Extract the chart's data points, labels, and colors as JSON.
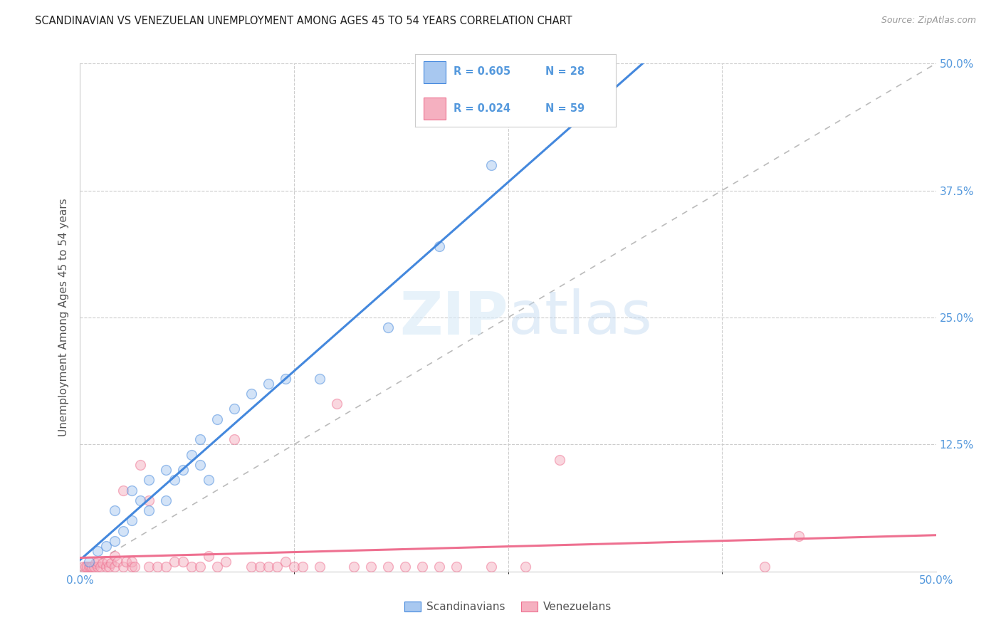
{
  "title": "SCANDINAVIAN VS VENEZUELAN UNEMPLOYMENT AMONG AGES 45 TO 54 YEARS CORRELATION CHART",
  "source": "Source: ZipAtlas.com",
  "ylabel": "Unemployment Among Ages 45 to 54 years",
  "xlim": [
    0,
    0.5
  ],
  "ylim": [
    0,
    0.5
  ],
  "right_yticks": [
    0.0,
    0.125,
    0.25,
    0.375,
    0.5
  ],
  "right_yticklabels": [
    "",
    "12.5%",
    "25.0%",
    "37.5%",
    "50.0%"
  ],
  "scandinavian_color": "#A8C8F0",
  "venezuelan_color": "#F5B0C0",
  "scand_line_color": "#4488DD",
  "venez_line_color": "#EE7090",
  "diagonal_color": "#BBBBBB",
  "legend_label_scand": "Scandinavians",
  "legend_label_venez": "Venezuelans",
  "title_color": "#222222",
  "source_color": "#999999",
  "axis_label_color": "#555555",
  "tick_color": "#5599DD",
  "grid_color": "#CCCCCC",
  "scand_x": [
    0.005,
    0.01,
    0.015,
    0.02,
    0.02,
    0.025,
    0.03,
    0.03,
    0.035,
    0.04,
    0.04,
    0.05,
    0.05,
    0.055,
    0.06,
    0.065,
    0.07,
    0.07,
    0.075,
    0.08,
    0.09,
    0.1,
    0.11,
    0.12,
    0.14,
    0.18,
    0.21,
    0.24
  ],
  "scand_y": [
    0.01,
    0.02,
    0.025,
    0.03,
    0.06,
    0.04,
    0.05,
    0.08,
    0.07,
    0.06,
    0.09,
    0.07,
    0.1,
    0.09,
    0.1,
    0.115,
    0.105,
    0.13,
    0.09,
    0.15,
    0.16,
    0.175,
    0.185,
    0.19,
    0.19,
    0.24,
    0.32,
    0.4
  ],
  "venez_x": [
    0.002,
    0.003,
    0.004,
    0.005,
    0.006,
    0.007,
    0.008,
    0.009,
    0.01,
    0.01,
    0.012,
    0.013,
    0.015,
    0.016,
    0.017,
    0.018,
    0.02,
    0.02,
    0.022,
    0.025,
    0.025,
    0.027,
    0.03,
    0.03,
    0.032,
    0.035,
    0.04,
    0.04,
    0.045,
    0.05,
    0.055,
    0.06,
    0.065,
    0.07,
    0.075,
    0.08,
    0.085,
    0.09,
    0.1,
    0.105,
    0.11,
    0.115,
    0.12,
    0.125,
    0.13,
    0.14,
    0.15,
    0.16,
    0.17,
    0.18,
    0.19,
    0.2,
    0.21,
    0.22,
    0.24,
    0.26,
    0.28,
    0.4,
    0.42
  ],
  "venez_y": [
    0.005,
    0.005,
    0.005,
    0.005,
    0.005,
    0.005,
    0.005,
    0.008,
    0.005,
    0.01,
    0.005,
    0.008,
    0.005,
    0.01,
    0.005,
    0.008,
    0.005,
    0.015,
    0.01,
    0.005,
    0.08,
    0.01,
    0.005,
    0.01,
    0.005,
    0.105,
    0.005,
    0.07,
    0.005,
    0.005,
    0.01,
    0.01,
    0.005,
    0.005,
    0.015,
    0.005,
    0.01,
    0.13,
    0.005,
    0.005,
    0.005,
    0.005,
    0.01,
    0.005,
    0.005,
    0.005,
    0.165,
    0.005,
    0.005,
    0.005,
    0.005,
    0.005,
    0.005,
    0.005,
    0.005,
    0.005,
    0.11,
    0.005,
    0.035
  ],
  "marker_size": 100,
  "marker_alpha": 0.5,
  "marker_lw": 1.0
}
